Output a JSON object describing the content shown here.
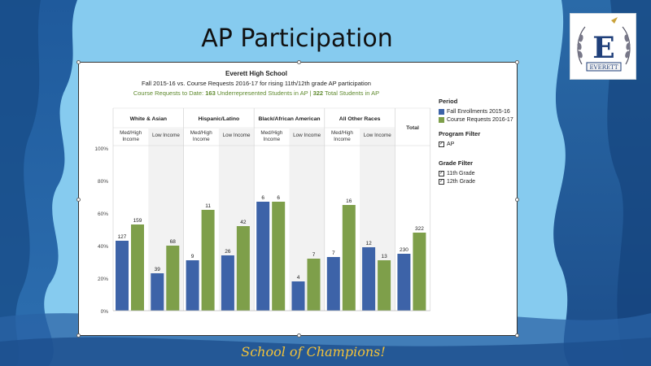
{
  "slide": {
    "title": "AP Participation",
    "tagline": "School of Champions!",
    "logo_text": "EVERETT",
    "logo_letter": "E"
  },
  "dashboard": {
    "school": "Everett High School",
    "subtitle": "Fall 2015-16 vs. Course Requests 2016-17 for rising 11th/12th grade AP participation",
    "requests_prefix": "Course Requests to Date: ",
    "requests_num1": "163",
    "requests_mid": " Underrepresented Students in AP | ",
    "requests_num2": "322",
    "requests_suffix": " Total Students in AP"
  },
  "legend": {
    "period_title": "Period",
    "period_items": [
      "Fall Enrollments 2015-16",
      "Course Requests 2016-17"
    ],
    "program_title": "Program Filter",
    "program_items": [
      "AP"
    ],
    "grade_title": "Grade Filter",
    "grade_items": [
      "11th Grade",
      "12th Grade"
    ]
  },
  "colors": {
    "fall": "#3d63a8",
    "request": "#7e9f4a",
    "accent_text": "#5f8a2e"
  },
  "chart_data": {
    "type": "bar",
    "y_ticks": [
      "100%",
      "80%",
      "60%",
      "40%",
      "20%",
      "0%"
    ],
    "ylim": [
      0,
      100
    ],
    "groups": [
      {
        "name": "White & Asian",
        "subgroups": [
          {
            "label": [
              "Med/High",
              "Income"
            ],
            "fall": 43,
            "fall_label": "127",
            "request": 53,
            "request_label": "159"
          },
          {
            "label": [
              "Low Income"
            ],
            "fall": 23,
            "fall_label": "39",
            "request": 40,
            "request_label": "68"
          }
        ]
      },
      {
        "name": "Hispanic/Latino",
        "subgroups": [
          {
            "label": [
              "Med/High",
              "Income"
            ],
            "fall": 31,
            "fall_label": "9",
            "request": 62,
            "request_label": "11"
          },
          {
            "label": [
              "Low Income"
            ],
            "fall": 34,
            "fall_label": "26",
            "request": 52,
            "request_label": "42"
          }
        ]
      },
      {
        "name": "Black/African American",
        "subgroups": [
          {
            "label": [
              "Med/High",
              "Income"
            ],
            "fall": 67,
            "fall_label": "6",
            "request": 67,
            "request_label": "6"
          },
          {
            "label": [
              "Low Income"
            ],
            "fall": 18,
            "fall_label": "4",
            "request": 32,
            "request_label": "7"
          }
        ]
      },
      {
        "name": "All Other Races",
        "subgroups": [
          {
            "label": [
              "Med/High",
              "Income"
            ],
            "fall": 33,
            "fall_label": "7",
            "request": 65,
            "request_label": "16"
          },
          {
            "label": [
              "Low Income"
            ],
            "fall": 39,
            "fall_label": "12",
            "request": 31,
            "request_label": "13"
          }
        ]
      },
      {
        "name": "",
        "subgroups": [
          {
            "label": [
              "Total"
            ],
            "fall": 35,
            "fall_label": "230",
            "request": 48,
            "request_label": "322"
          }
        ]
      }
    ]
  }
}
